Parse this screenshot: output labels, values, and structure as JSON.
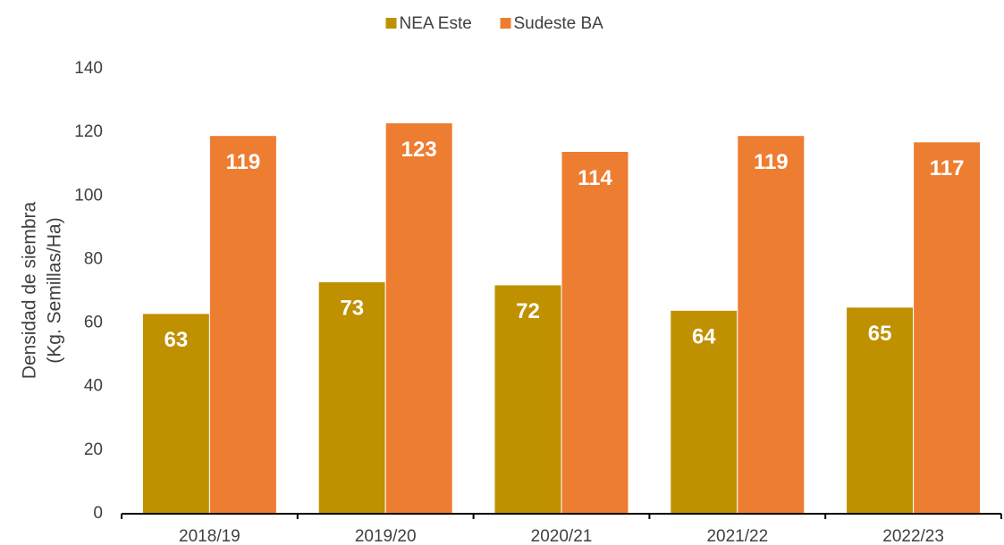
{
  "chart_data": {
    "type": "bar",
    "y_label": [
      "Densidad de siembra",
      "(Kg. Semillas/Ha)"
    ],
    "categories": [
      "2018/19",
      "2019/20",
      "2020/21",
      "2021/22",
      "2022/23"
    ],
    "series": [
      {
        "name": "NEA Este",
        "color": "#bf9000",
        "values": [
          63,
          73,
          72,
          64,
          65
        ]
      },
      {
        "name": "Sudeste BA",
        "color": "#ed7d31",
        "values": [
          119,
          123,
          114,
          119,
          117
        ]
      }
    ],
    "ylim": [
      0,
      140
    ],
    "yticks": [
      0,
      20,
      40,
      60,
      80,
      100,
      120,
      140
    ],
    "grid": false,
    "legend": "top"
  }
}
